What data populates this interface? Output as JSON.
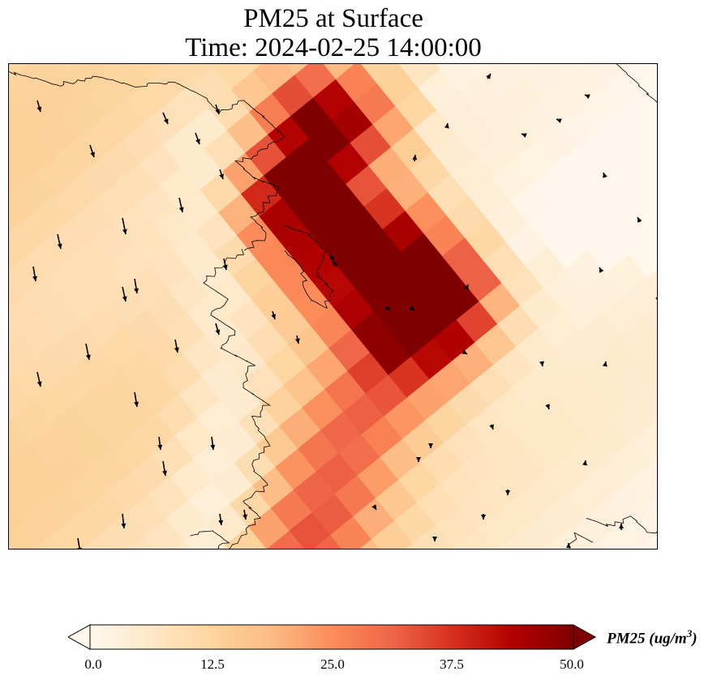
{
  "title": {
    "line1": "PM25 at Surface",
    "line2": "Time: 2024-02-25 14:00:00"
  },
  "map": {
    "variable": "PM25",
    "units": "ug/m^3",
    "colormap": "OrRd",
    "colormap_stops": [
      "#fff7ec",
      "#fee8c8",
      "#fdd49e",
      "#fdbb84",
      "#fc8d59",
      "#ef6548",
      "#d7301f",
      "#b30000",
      "#7f0000"
    ],
    "value_range": [
      0,
      50
    ],
    "extend": "both",
    "features": [
      "coastline",
      "pm25-field",
      "wind-vectors"
    ]
  },
  "colorbar": {
    "ticks": [
      "0.0",
      "12.5",
      "25.0",
      "37.5",
      "50.0"
    ],
    "label_text": "PM25 (ug/m",
    "label_superscript": "3",
    "label_close": ")",
    "orientation": "horizontal"
  }
}
